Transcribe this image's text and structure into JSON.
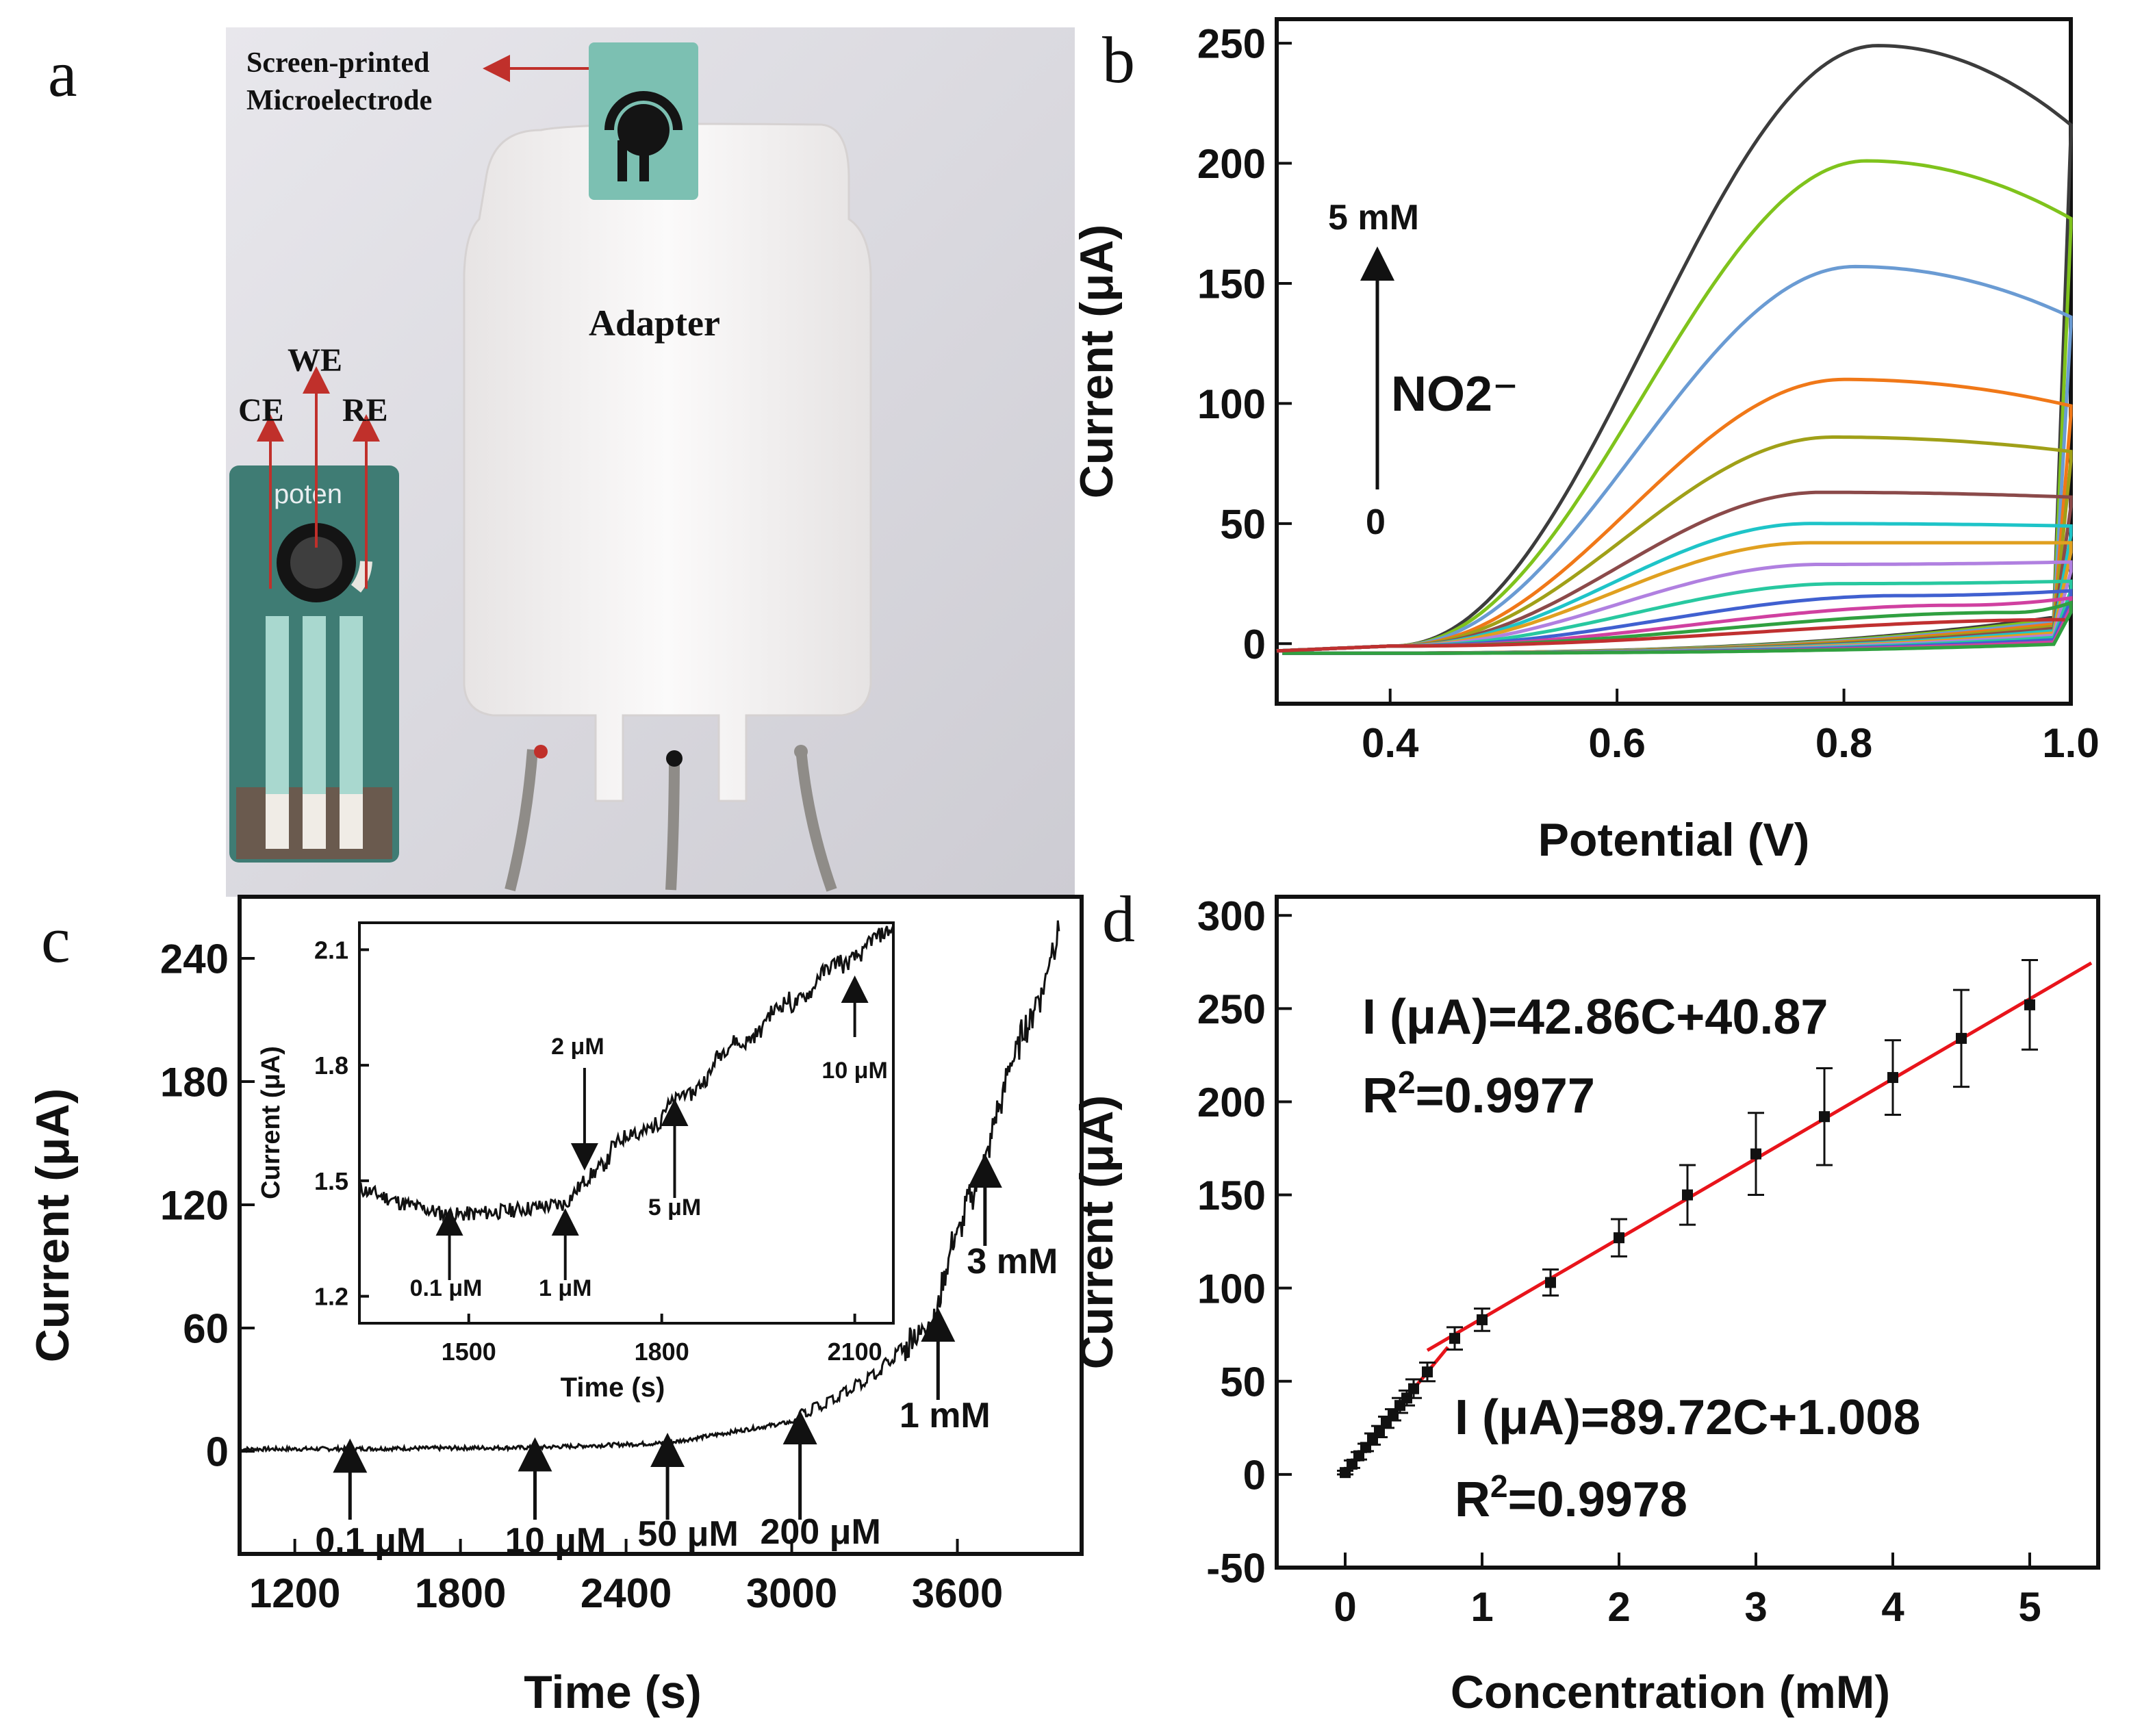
{
  "panels": {
    "a": {
      "letter": "a",
      "labels": {
        "screen_printed": "Screen-printed",
        "microelectrode": "Microelectrode",
        "adapter": "Adapter",
        "we": "WE",
        "ce": "CE",
        "re": "RE",
        "brand": "poten"
      },
      "colors": {
        "background": "#dcdbe2",
        "adapter": "#f4f2f2",
        "electrode": "#6bb3a6",
        "arrow": "#c0302b"
      }
    },
    "b": {
      "letter": "b",
      "annotation_top": "5 mM",
      "annotation_bottom": "0",
      "annotation_species": "NO2⁻"
    },
    "c": {
      "letter": "c",
      "annotations": [
        "0.1 μM",
        "10 μM",
        "50 μM",
        "200 μM",
        "1 mM",
        "3 mM"
      ],
      "inset_annotations": [
        "0.1 μM",
        "1 μM",
        "2 μM",
        "5 μM",
        "10 μM"
      ]
    },
    "d": {
      "letter": "d",
      "eq_high": "I (μA)=42.86C+40.87",
      "r2_high_prefix": "R",
      "r2_high_value": "=0.9977",
      "eq_low": "I (μA)=89.72C+1.008",
      "r2_low_prefix": "R",
      "r2_low_value": "=0.9978",
      "r2_sup": "2"
    }
  },
  "chart_data": [
    {
      "id": "b",
      "type": "line",
      "xlabel": "Potential (V)",
      "ylabel": "Current (μA)",
      "xlim": [
        0.3,
        1.0
      ],
      "ylim": [
        -25,
        260
      ],
      "xticks": [
        0.4,
        0.6,
        0.8,
        1.0
      ],
      "xtick_labels": [
        "0.4",
        "0.6",
        "0.8",
        "1.0"
      ],
      "yticks": [
        0,
        50,
        100,
        150,
        200,
        250
      ],
      "ytick_labels": [
        "0",
        "50",
        "100",
        "150",
        "200",
        "250"
      ],
      "grid": false,
      "legend": "none",
      "series": [
        {
          "peak": 249,
          "end_upper": 216,
          "peak_x": 0.83,
          "end_lower": 16,
          "color": "#3c3c3c"
        },
        {
          "peak": 201,
          "end_upper": 177,
          "peak_x": 0.82,
          "end_lower": 15,
          "color": "#7fc31c"
        },
        {
          "peak": 157,
          "end_upper": 136,
          "peak_x": 0.81,
          "end_lower": 14,
          "color": "#6a9bd3"
        },
        {
          "peak": 110,
          "end_upper": 99,
          "peak_x": 0.8,
          "end_lower": 13,
          "color": "#f07818"
        },
        {
          "peak": 86,
          "end_upper": 80,
          "peak_x": 0.79,
          "end_lower": 12,
          "color": "#a0a018"
        },
        {
          "peak": 63,
          "end_upper": 61,
          "peak_x": 0.78,
          "end_lower": 11,
          "color": "#8b4a4a"
        },
        {
          "peak": 50,
          "end_upper": 49,
          "peak_x": 0.77,
          "end_lower": 10,
          "color": "#1ec4c8"
        },
        {
          "peak": 42,
          "end_upper": 42,
          "peak_x": 0.77,
          "end_lower": 9,
          "color": "#e0a020"
        },
        {
          "peak": 33,
          "end_upper": 34,
          "peak_x": 0.78,
          "end_lower": 8,
          "color": "#b080e0"
        },
        {
          "peak": 25,
          "end_upper": 26,
          "peak_x": 0.8,
          "end_lower": 7,
          "color": "#28c8a0"
        },
        {
          "peak": 20,
          "end_upper": 22,
          "peak_x": 0.85,
          "end_lower": 6,
          "color": "#4060d0"
        },
        {
          "peak": 16,
          "end_upper": 19,
          "peak_x": 0.9,
          "end_lower": 5,
          "color": "#d040a0"
        },
        {
          "peak": 13,
          "end_upper": 17,
          "peak_x": 0.95,
          "end_lower": 4,
          "color": "#30a040"
        },
        {
          "peak": 10,
          "end_upper": 15,
          "peak_x": 1.0,
          "end_lower": 3,
          "color": "#c03030"
        }
      ]
    },
    {
      "id": "c",
      "type": "line",
      "xlabel": "Time (s)",
      "ylabel": "Current (μA)",
      "xlim": [
        1000,
        4050
      ],
      "ylim": [
        -50,
        270
      ],
      "xticks": [
        1200,
        1800,
        2400,
        3000,
        3600
      ],
      "xtick_labels": [
        "1200",
        "1800",
        "2400",
        "3000",
        "3600"
      ],
      "yticks": [
        0,
        60,
        120,
        180,
        240
      ],
      "ytick_labels": [
        "0",
        "60",
        "120",
        "180",
        "240"
      ],
      "grid": false,
      "addition_times": [
        1400,
        2070,
        2550,
        3030,
        3530,
        3700
      ],
      "points": [
        [
          1000,
          1
        ],
        [
          1400,
          1.2
        ],
        [
          2070,
          1.8
        ],
        [
          2550,
          4
        ],
        [
          3030,
          15
        ],
        [
          3300,
          35
        ],
        [
          3530,
          65
        ],
        [
          3560,
          90
        ],
        [
          3700,
          140
        ],
        [
          3800,
          190
        ],
        [
          3900,
          220
        ],
        [
          3970,
          255
        ]
      ],
      "inset": {
        "xlabel": "Time (s)",
        "ylabel": "Current (μA)",
        "xlim": [
          1330,
          2160
        ],
        "ylim": [
          1.13,
          2.17
        ],
        "xticks": [
          1500,
          1800,
          2100
        ],
        "xtick_labels": [
          "1500",
          "1800",
          "2100"
        ],
        "yticks": [
          1.2,
          1.5,
          1.8,
          2.1
        ],
        "ytick_labels": [
          "1.2",
          "1.5",
          "1.8",
          "2.1"
        ],
        "addition_times": [
          1470,
          1650,
          1680,
          1820,
          2100
        ],
        "points": [
          [
            1330,
            1.48
          ],
          [
            1400,
            1.44
          ],
          [
            1470,
            1.41
          ],
          [
            1550,
            1.42
          ],
          [
            1650,
            1.44
          ],
          [
            1680,
            1.5
          ],
          [
            1750,
            1.6
          ],
          [
            1820,
            1.68
          ],
          [
            1900,
            1.82
          ],
          [
            2000,
            1.95
          ],
          [
            2100,
            2.08
          ],
          [
            2160,
            2.13
          ]
        ]
      }
    },
    {
      "id": "d",
      "type": "scatter",
      "xlabel": "Concentration (mM)",
      "ylabel": "Current (μA)",
      "xlim": [
        -0.5,
        5.5
      ],
      "ylim": [
        -50,
        310
      ],
      "xticks": [
        0,
        1,
        2,
        3,
        4,
        5
      ],
      "xtick_labels": [
        "0",
        "1",
        "2",
        "3",
        "4",
        "5"
      ],
      "yticks": [
        -50,
        0,
        50,
        100,
        150,
        200,
        250,
        300
      ],
      "ytick_labels": [
        "-50",
        "0",
        "50",
        "100",
        "150",
        "200",
        "250",
        "300"
      ],
      "grid": false,
      "points": [
        {
          "x": 0.0001,
          "y": 1,
          "err": 1
        },
        {
          "x": 0.05,
          "y": 5.5,
          "err": 2
        },
        {
          "x": 0.1,
          "y": 10,
          "err": 2
        },
        {
          "x": 0.15,
          "y": 14.5,
          "err": 2
        },
        {
          "x": 0.2,
          "y": 19,
          "err": 3
        },
        {
          "x": 0.25,
          "y": 23,
          "err": 3
        },
        {
          "x": 0.3,
          "y": 28,
          "err": 3
        },
        {
          "x": 0.35,
          "y": 32,
          "err": 3
        },
        {
          "x": 0.4,
          "y": 37,
          "err": 4
        },
        {
          "x": 0.45,
          "y": 41,
          "err": 4
        },
        {
          "x": 0.5,
          "y": 46,
          "err": 5
        },
        {
          "x": 0.6,
          "y": 55,
          "err": 5
        },
        {
          "x": 0.8,
          "y": 73,
          "err": 6
        },
        {
          "x": 1.0,
          "y": 83,
          "err": 6
        },
        {
          "x": 1.5,
          "y": 103,
          "err": 7
        },
        {
          "x": 2.0,
          "y": 127,
          "err": 10
        },
        {
          "x": 2.5,
          "y": 150,
          "err": 16
        },
        {
          "x": 3.0,
          "y": 172,
          "err": 22
        },
        {
          "x": 3.5,
          "y": 192,
          "err": 26
        },
        {
          "x": 4.0,
          "y": 213,
          "err": 20
        },
        {
          "x": 4.5,
          "y": 234,
          "err": 26
        },
        {
          "x": 5.0,
          "y": 252,
          "err": 24
        }
      ],
      "fits": [
        {
          "slope": 89.72,
          "intercept": 1.008,
          "range": [
            0,
            0.75
          ],
          "color": "#e8141b"
        },
        {
          "slope": 42.86,
          "intercept": 40.87,
          "range": [
            0.6,
            5.45
          ],
          "color": "#e8141b"
        }
      ]
    }
  ]
}
